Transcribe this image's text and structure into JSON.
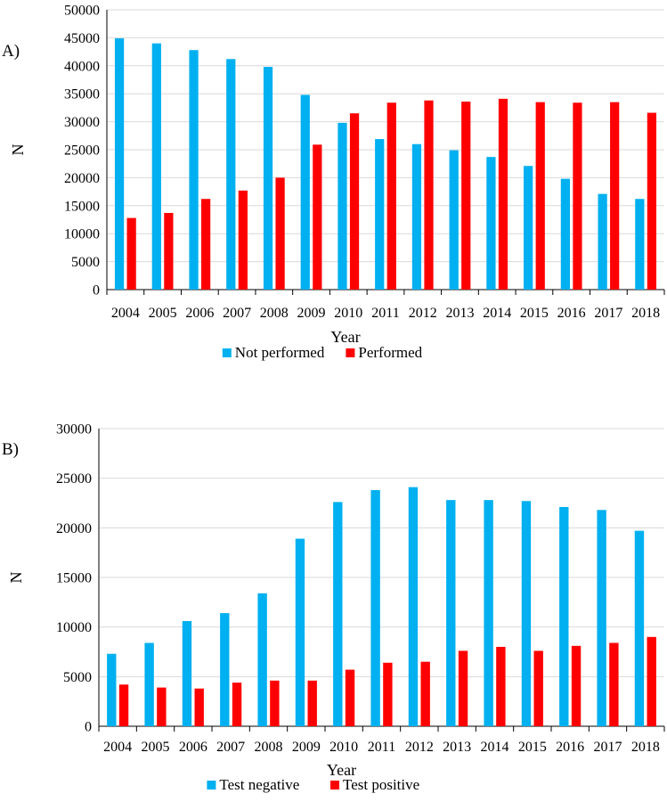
{
  "chart_data": [
    {
      "panel_label": "A)",
      "type": "bar",
      "title": "",
      "xlabel": "Year",
      "ylabel": "N",
      "ylim": [
        0,
        50000
      ],
      "yticks": [
        0,
        5000,
        10000,
        15000,
        20000,
        25000,
        30000,
        35000,
        40000,
        45000,
        50000
      ],
      "ytick_labels": [
        "0",
        "5000",
        "10000",
        "15000",
        "20000",
        "25000",
        "30000",
        "35000",
        "40000",
        "45000",
        "50000"
      ],
      "grid": true,
      "legend_position": "bottom",
      "categories": [
        "2004",
        "2005",
        "2006",
        "2007",
        "2008",
        "2009",
        "2010",
        "2011",
        "2012",
        "2013",
        "2014",
        "2015",
        "2016",
        "2017",
        "2018"
      ],
      "series": [
        {
          "name": "Not performed",
          "color": "#00B0F0",
          "values": [
            44900,
            44000,
            42800,
            41200,
            39800,
            34800,
            29800,
            26900,
            26000,
            24900,
            23700,
            22100,
            19800,
            17100,
            16200
          ]
        },
        {
          "name": "Performed",
          "color": "#FF0000",
          "values": [
            12800,
            13700,
            16200,
            17700,
            20000,
            25900,
            31500,
            33400,
            33800,
            33600,
            34100,
            33500,
            33400,
            33500,
            31600
          ]
        }
      ]
    },
    {
      "panel_label": "B)",
      "type": "bar",
      "title": "",
      "xlabel": "Year",
      "ylabel": "N",
      "ylim": [
        0,
        30000
      ],
      "yticks": [
        0,
        5000,
        10000,
        15000,
        20000,
        25000,
        30000
      ],
      "ytick_labels": [
        "0",
        "5000",
        "10000",
        "15000",
        "20000",
        "25000",
        "30000"
      ],
      "grid": true,
      "legend_position": "bottom",
      "categories": [
        "2004",
        "2005",
        "2006",
        "2007",
        "2008",
        "2009",
        "2010",
        "2011",
        "2012",
        "2013",
        "2014",
        "2015",
        "2016",
        "2017",
        "2018"
      ],
      "series": [
        {
          "name": "Test negative",
          "color": "#00B0F0",
          "values": [
            7300,
            8400,
            10600,
            11400,
            13400,
            18900,
            22600,
            23800,
            24100,
            22800,
            22800,
            22700,
            22100,
            21800,
            19700
          ]
        },
        {
          "name": "Test positive",
          "color": "#FF0000",
          "values": [
            4200,
            3900,
            3800,
            4400,
            4600,
            4600,
            5700,
            6400,
            6500,
            7600,
            8000,
            7600,
            8100,
            8400,
            9000
          ]
        }
      ]
    }
  ]
}
